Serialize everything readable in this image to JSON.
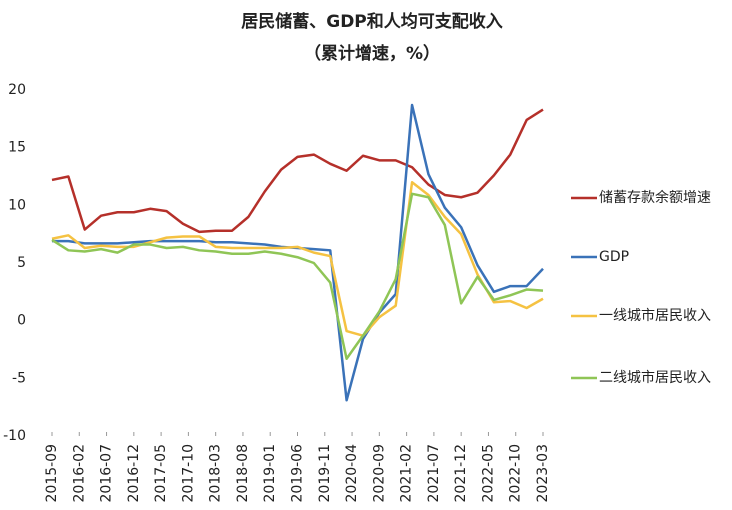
{
  "chart_data": {
    "type": "line",
    "title": "居民储蓄、GDP和人均可支配收入",
    "subtitle": "（累计增速，%）",
    "x": [
      "2015-09",
      "2015-12",
      "2016-03",
      "2016-06",
      "2016-09",
      "2016-12",
      "2017-03",
      "2017-06",
      "2017-09",
      "2017-12",
      "2018-03",
      "2018-06",
      "2018-09",
      "2018-12",
      "2019-03",
      "2019-06",
      "2019-09",
      "2019-12",
      "2020-03",
      "2020-06",
      "2020-09",
      "2020-12",
      "2021-03",
      "2021-06",
      "2021-09",
      "2021-12",
      "2022-03",
      "2022-06",
      "2022-09",
      "2022-12",
      "2023-03"
    ],
    "xlim": [
      "2015-09",
      "2023-03"
    ],
    "xticks": [
      "2015-09",
      "2016-02",
      "2016-07",
      "2016-12",
      "2017-05",
      "2017-10",
      "2018-03",
      "2018-08",
      "2019-01",
      "2019-06",
      "2019-11",
      "2020-04",
      "2020-09",
      "2021-02",
      "2021-07",
      "2021-12",
      "2022-05",
      "2022-10",
      "2023-03"
    ],
    "ylim": [
      -10,
      20
    ],
    "yticks": [
      -10,
      -5,
      0,
      5,
      10,
      15,
      20
    ],
    "grid": false,
    "legend": "right",
    "series": [
      {
        "name": "储蓄存款余额增速",
        "color": "#b5302a",
        "values": [
          12.2,
          12.5,
          7.9,
          9.1,
          9.4,
          9.4,
          9.7,
          9.5,
          8.4,
          7.7,
          7.8,
          7.8,
          9.0,
          11.2,
          13.1,
          14.2,
          14.4,
          13.6,
          13.0,
          14.3,
          13.9,
          13.9,
          13.3,
          11.8,
          10.9,
          10.7,
          11.1,
          12.6,
          14.4,
          17.4,
          18.3
        ]
      },
      {
        "name": "GDP",
        "color": "#3a72b8",
        "values": [
          6.9,
          6.9,
          6.7,
          6.7,
          6.7,
          6.8,
          6.9,
          6.9,
          6.9,
          6.9,
          6.8,
          6.8,
          6.7,
          6.6,
          6.4,
          6.3,
          6.2,
          6.1,
          -6.9,
          -1.6,
          0.7,
          2.3,
          18.7,
          12.7,
          9.8,
          8.1,
          4.8,
          2.5,
          3.0,
          3.0,
          4.5
        ]
      },
      {
        "name": "一线城市居民收入",
        "color": "#f5c242",
        "values": [
          7.1,
          7.4,
          6.3,
          6.5,
          6.4,
          6.4,
          6.8,
          7.2,
          7.3,
          7.3,
          6.4,
          6.3,
          6.3,
          6.3,
          6.3,
          6.4,
          5.9,
          5.6,
          -0.9,
          -1.3,
          0.3,
          1.3,
          12.0,
          10.9,
          9.0,
          7.5,
          4.0,
          1.6,
          1.7,
          1.1,
          1.9
        ]
      },
      {
        "name": "二线城市居民收入",
        "color": "#8fc556",
        "values": [
          7.0,
          6.1,
          6.0,
          6.2,
          5.9,
          6.6,
          6.6,
          6.3,
          6.4,
          6.1,
          6.0,
          5.8,
          5.8,
          6.0,
          5.8,
          5.5,
          5.0,
          3.3,
          -3.3,
          -1.3,
          0.8,
          3.6,
          11.0,
          10.7,
          8.3,
          1.5,
          3.8,
          1.8,
          2.2,
          2.7,
          2.6
        ]
      }
    ]
  }
}
